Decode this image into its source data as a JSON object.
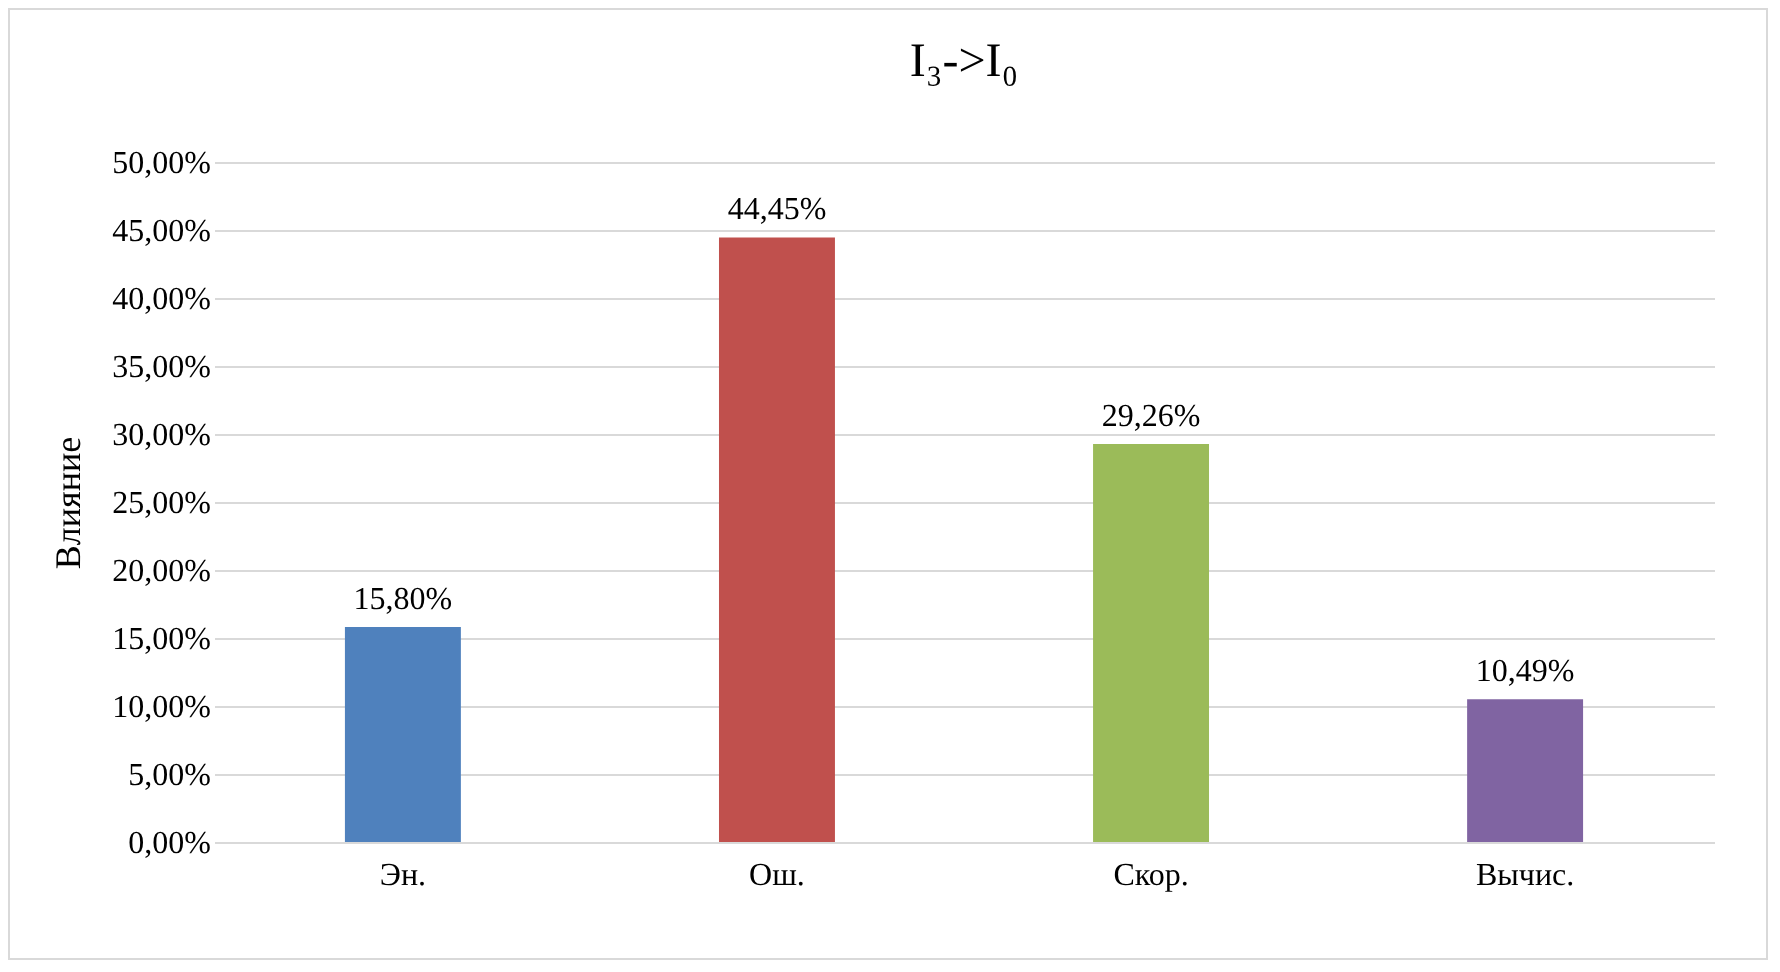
{
  "chart_data": {
    "type": "bar",
    "title": "I₃->I₀",
    "ylabel": "Влияние",
    "categories": [
      "Эн.",
      "Ош.",
      "Скор.",
      "Вычис."
    ],
    "values": [
      15.8,
      44.45,
      29.26,
      10.49
    ],
    "colors": [
      "#4f81bd",
      "#c0504d",
      "#9bbb59",
      "#8064a2"
    ],
    "value_labels": [
      "15,80%",
      "44,45%",
      "29,26%",
      "10,49%"
    ],
    "ylim": [
      0,
      50
    ],
    "yticks": [
      {
        "value": 0,
        "label": "0,00%"
      },
      {
        "value": 5,
        "label": "5,00%"
      },
      {
        "value": 10,
        "label": "10,00%"
      },
      {
        "value": 15,
        "label": "15,00%"
      },
      {
        "value": 20,
        "label": "20,00%"
      },
      {
        "value": 25,
        "label": "25,00%"
      },
      {
        "value": 30,
        "label": "30,00%"
      },
      {
        "value": 35,
        "label": "35,00%"
      },
      {
        "value": 40,
        "label": "40,00%"
      },
      {
        "value": 45,
        "label": "45,00%"
      },
      {
        "value": 50,
        "label": "50,00%"
      }
    ],
    "grid": "y"
  }
}
